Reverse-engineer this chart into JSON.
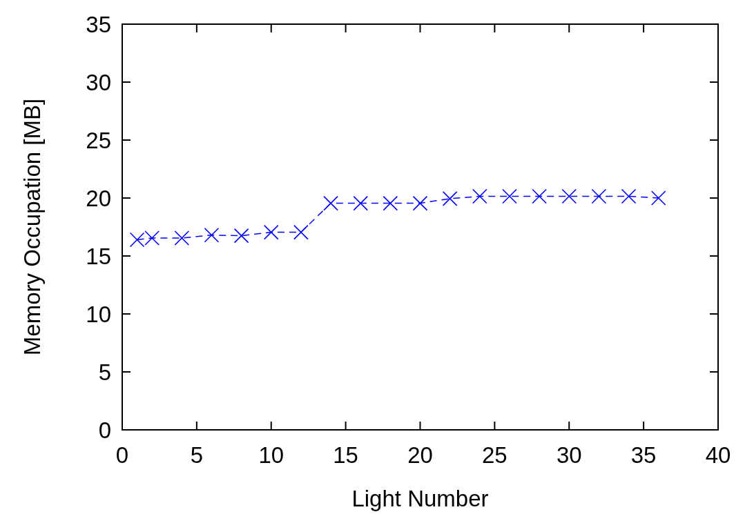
{
  "chart_data": {
    "type": "line",
    "xlabel": "Light Number",
    "ylabel": "Memory Occupation [MB]",
    "x": [
      1,
      2,
      4,
      6,
      8,
      10,
      12,
      14,
      16,
      18,
      20,
      22,
      24,
      26,
      28,
      30,
      32,
      34,
      36
    ],
    "series": [
      {
        "color": "#0000ff",
        "values": [
          16.4,
          16.55,
          16.55,
          16.8,
          16.75,
          17.05,
          17.05,
          19.55,
          19.55,
          19.55,
          19.55,
          19.95,
          20.15,
          20.15,
          20.15,
          20.15,
          20.15,
          20.15,
          20.0
        ]
      }
    ],
    "xlim": [
      0,
      40
    ],
    "xticks": [
      0,
      5,
      10,
      15,
      20,
      25,
      30,
      35,
      40
    ],
    "ylim": [
      0,
      35
    ],
    "yticks": [
      0,
      5,
      10,
      15,
      20,
      25,
      30,
      35
    ],
    "marker": "cross",
    "line_style": "dashed",
    "grid": false
  }
}
